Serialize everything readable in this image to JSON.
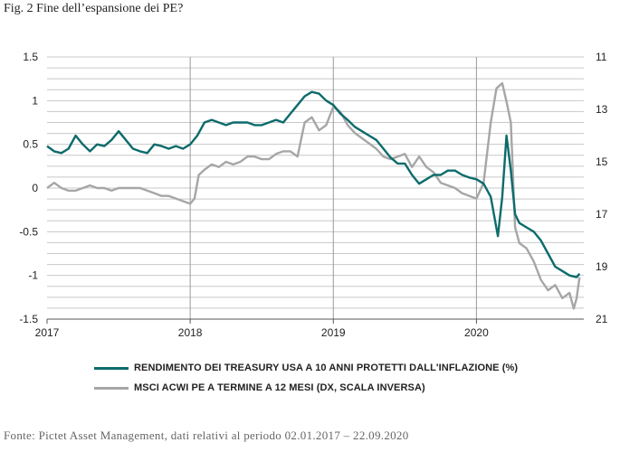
{
  "title": "Fig. 2 Fine dell’espansione dei PE?",
  "source": "Fonte: Pictet Asset Management, dati relativi al periodo 02.01.2017 – 22.09.2020",
  "colors": {
    "teal": "#0d6b6b",
    "gray": "#a6a6a6",
    "grid": "#c8c8c8"
  },
  "chart_data": {
    "type": "line",
    "title": "Fig. 2 Fine dell’espansione dei PE?",
    "x_ticks": [
      "2017",
      "2018",
      "2019",
      "2020"
    ],
    "y_left_ticks": [
      "1.5",
      "1",
      "0.5",
      "0",
      "-0.5",
      "-1",
      "-1.5"
    ],
    "y_right_ticks": [
      "11",
      "13",
      "15",
      "17",
      "19",
      "21"
    ],
    "ylim_left": [
      -1.5,
      1.5
    ],
    "ylim_right": [
      21,
      11
    ],
    "right_axis_inverted": true,
    "grid": true,
    "legend_position": "bottom",
    "series": [
      {
        "name": "RENDIMENTO DEI TREASURY USA A 10 ANNI PROTETTI DALL'INFLAZIONE (%)",
        "axis": "left",
        "color": "#0d6b6b",
        "points": [
          [
            2017.0,
            0.48
          ],
          [
            2017.05,
            0.42
          ],
          [
            2017.1,
            0.4
          ],
          [
            2017.15,
            0.45
          ],
          [
            2017.2,
            0.6
          ],
          [
            2017.25,
            0.5
          ],
          [
            2017.3,
            0.42
          ],
          [
            2017.35,
            0.5
          ],
          [
            2017.4,
            0.48
          ],
          [
            2017.45,
            0.55
          ],
          [
            2017.5,
            0.65
          ],
          [
            2017.55,
            0.55
          ],
          [
            2017.6,
            0.45
          ],
          [
            2017.65,
            0.42
          ],
          [
            2017.7,
            0.4
          ],
          [
            2017.75,
            0.5
          ],
          [
            2017.8,
            0.48
          ],
          [
            2017.85,
            0.45
          ],
          [
            2017.9,
            0.48
          ],
          [
            2017.95,
            0.45
          ],
          [
            2018.0,
            0.5
          ],
          [
            2018.05,
            0.6
          ],
          [
            2018.1,
            0.75
          ],
          [
            2018.15,
            0.78
          ],
          [
            2018.2,
            0.75
          ],
          [
            2018.25,
            0.72
          ],
          [
            2018.3,
            0.75
          ],
          [
            2018.35,
            0.75
          ],
          [
            2018.4,
            0.75
          ],
          [
            2018.45,
            0.72
          ],
          [
            2018.5,
            0.72
          ],
          [
            2018.55,
            0.75
          ],
          [
            2018.6,
            0.78
          ],
          [
            2018.65,
            0.75
          ],
          [
            2018.7,
            0.85
          ],
          [
            2018.75,
            0.95
          ],
          [
            2018.8,
            1.05
          ],
          [
            2018.85,
            1.1
          ],
          [
            2018.9,
            1.08
          ],
          [
            2018.95,
            1.0
          ],
          [
            2019.0,
            0.95
          ],
          [
            2019.05,
            0.85
          ],
          [
            2019.1,
            0.78
          ],
          [
            2019.15,
            0.7
          ],
          [
            2019.2,
            0.65
          ],
          [
            2019.25,
            0.6
          ],
          [
            2019.3,
            0.55
          ],
          [
            2019.35,
            0.45
          ],
          [
            2019.4,
            0.35
          ],
          [
            2019.45,
            0.28
          ],
          [
            2019.5,
            0.28
          ],
          [
            2019.55,
            0.15
          ],
          [
            2019.6,
            0.05
          ],
          [
            2019.65,
            0.1
          ],
          [
            2019.7,
            0.15
          ],
          [
            2019.75,
            0.15
          ],
          [
            2019.8,
            0.2
          ],
          [
            2019.85,
            0.2
          ],
          [
            2019.9,
            0.15
          ],
          [
            2019.95,
            0.12
          ],
          [
            2020.0,
            0.1
          ],
          [
            2020.05,
            0.05
          ],
          [
            2020.1,
            -0.1
          ],
          [
            2020.15,
            -0.55
          ],
          [
            2020.18,
            -0.1
          ],
          [
            2020.21,
            0.6
          ],
          [
            2020.24,
            0.2
          ],
          [
            2020.27,
            -0.3
          ],
          [
            2020.3,
            -0.4
          ],
          [
            2020.35,
            -0.45
          ],
          [
            2020.4,
            -0.5
          ],
          [
            2020.45,
            -0.6
          ],
          [
            2020.5,
            -0.75
          ],
          [
            2020.55,
            -0.9
          ],
          [
            2020.6,
            -0.95
          ],
          [
            2020.65,
            -1.0
          ],
          [
            2020.7,
            -1.02
          ],
          [
            2020.72,
            -0.98
          ]
        ]
      },
      {
        "name": "MSCI ACWI PE A TERMINE A 12 MESI (DX, SCALA INVERSA)",
        "axis": "right",
        "color": "#a6a6a6",
        "points": [
          [
            2017.0,
            16.0
          ],
          [
            2017.05,
            15.8
          ],
          [
            2017.1,
            16.0
          ],
          [
            2017.15,
            16.1
          ],
          [
            2017.2,
            16.1
          ],
          [
            2017.25,
            16.0
          ],
          [
            2017.3,
            15.9
          ],
          [
            2017.35,
            16.0
          ],
          [
            2017.4,
            16.0
          ],
          [
            2017.45,
            16.1
          ],
          [
            2017.5,
            16.0
          ],
          [
            2017.55,
            16.0
          ],
          [
            2017.6,
            16.0
          ],
          [
            2017.65,
            16.0
          ],
          [
            2017.7,
            16.1
          ],
          [
            2017.75,
            16.2
          ],
          [
            2017.8,
            16.3
          ],
          [
            2017.85,
            16.3
          ],
          [
            2017.9,
            16.4
          ],
          [
            2017.95,
            16.5
          ],
          [
            2018.0,
            16.6
          ],
          [
            2018.03,
            16.4
          ],
          [
            2018.06,
            15.5
          ],
          [
            2018.1,
            15.3
          ],
          [
            2018.15,
            15.1
          ],
          [
            2018.2,
            15.2
          ],
          [
            2018.25,
            15.0
          ],
          [
            2018.3,
            15.1
          ],
          [
            2018.35,
            15.0
          ],
          [
            2018.4,
            14.8
          ],
          [
            2018.45,
            14.8
          ],
          [
            2018.5,
            14.9
          ],
          [
            2018.55,
            14.9
          ],
          [
            2018.6,
            14.7
          ],
          [
            2018.65,
            14.6
          ],
          [
            2018.7,
            14.6
          ],
          [
            2018.75,
            14.8
          ],
          [
            2018.8,
            13.5
          ],
          [
            2018.85,
            13.3
          ],
          [
            2018.9,
            13.8
          ],
          [
            2018.95,
            13.6
          ],
          [
            2019.0,
            12.9
          ],
          [
            2019.05,
            13.1
          ],
          [
            2019.1,
            13.6
          ],
          [
            2019.15,
            13.9
          ],
          [
            2019.2,
            14.1
          ],
          [
            2019.25,
            14.3
          ],
          [
            2019.3,
            14.5
          ],
          [
            2019.35,
            14.8
          ],
          [
            2019.4,
            14.9
          ],
          [
            2019.45,
            14.8
          ],
          [
            2019.5,
            14.7
          ],
          [
            2019.55,
            15.2
          ],
          [
            2019.6,
            14.8
          ],
          [
            2019.65,
            15.2
          ],
          [
            2019.7,
            15.4
          ],
          [
            2019.75,
            15.8
          ],
          [
            2019.8,
            15.9
          ],
          [
            2019.85,
            16.0
          ],
          [
            2019.9,
            16.2
          ],
          [
            2019.95,
            16.3
          ],
          [
            2020.0,
            16.4
          ],
          [
            2020.05,
            15.8
          ],
          [
            2020.1,
            13.5
          ],
          [
            2020.14,
            12.2
          ],
          [
            2020.18,
            12.0
          ],
          [
            2020.21,
            12.7
          ],
          [
            2020.24,
            13.5
          ],
          [
            2020.27,
            17.5
          ],
          [
            2020.3,
            18.1
          ],
          [
            2020.35,
            18.3
          ],
          [
            2020.4,
            18.8
          ],
          [
            2020.45,
            19.5
          ],
          [
            2020.5,
            19.9
          ],
          [
            2020.55,
            19.7
          ],
          [
            2020.6,
            20.2
          ],
          [
            2020.65,
            20.0
          ],
          [
            2020.68,
            20.6
          ],
          [
            2020.7,
            20.2
          ],
          [
            2020.72,
            19.4
          ]
        ]
      }
    ]
  }
}
